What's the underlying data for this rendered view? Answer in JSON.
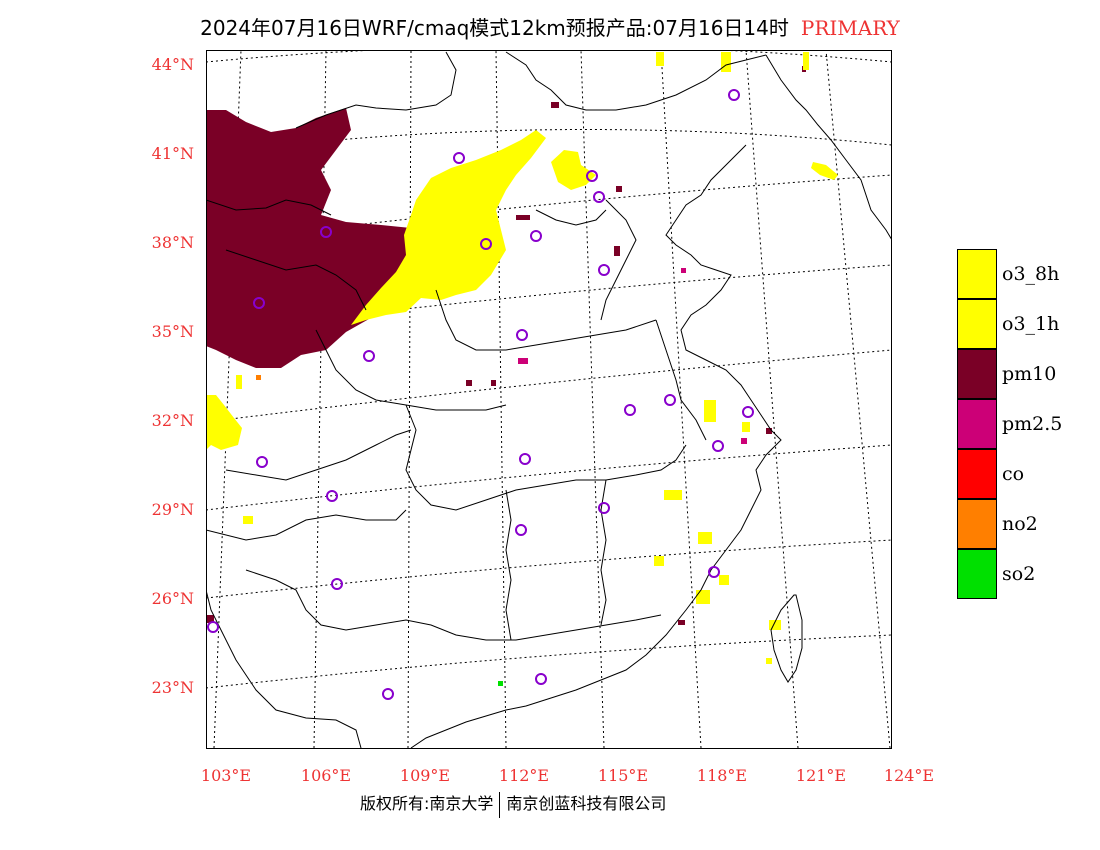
{
  "title": {
    "main": "2024年07月16日WRF/cmaq模式12km预报产品:07月16日14时",
    "tag": "PRIMARY"
  },
  "axes": {
    "lat_labels": [
      "44°N",
      "41°N",
      "38°N",
      "35°N",
      "32°N",
      "29°N",
      "26°N",
      "23°N"
    ],
    "lon_labels": [
      "103°E",
      "106°E",
      "109°E",
      "112°E",
      "115°E",
      "118°E",
      "121°E",
      "124°E"
    ]
  },
  "legend": [
    {
      "label": "o3_8h",
      "color": "#ffff00"
    },
    {
      "label": "o3_1h",
      "color": "#ffff00"
    },
    {
      "label": "pm10",
      "color": "#7a0026"
    },
    {
      "label": "pm2.5",
      "color": "#cc0077"
    },
    {
      "label": "co",
      "color": "#ff0000"
    },
    {
      "label": "no2",
      "color": "#ff7f00"
    },
    {
      "label": "so2",
      "color": "#00e000"
    }
  ],
  "footer": {
    "left": "版权所有:南京大学",
    "right": "南京创蓝科技有限公司"
  },
  "colors": {
    "station_marker": "#8800cc",
    "axis_text": "#ee3333"
  }
}
